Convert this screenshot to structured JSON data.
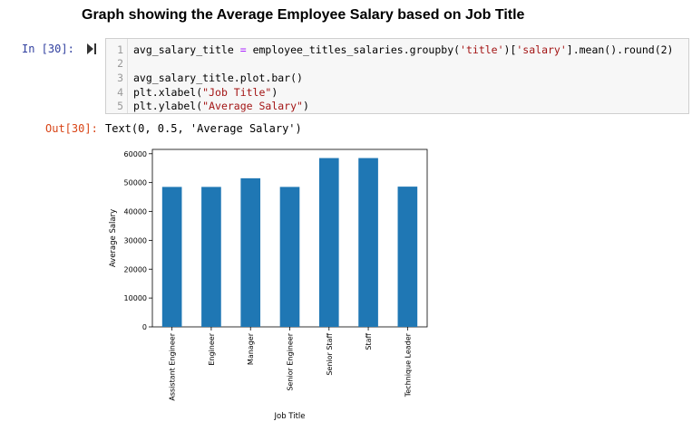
{
  "heading": "Graph showing the Average Employee Salary based on Job Title",
  "cell": {
    "in_prompt": "In [30]:",
    "run_icon": "run-cell-icon",
    "lines": [
      {
        "num": "1",
        "parts": [
          {
            "t": "avg_salary_title ",
            "c": ""
          },
          {
            "t": "=",
            "c": "op"
          },
          {
            "t": " employee_titles_salaries.groupby(",
            "c": ""
          },
          {
            "t": "'title'",
            "c": "str"
          },
          {
            "t": ")[",
            "c": ""
          },
          {
            "t": "'salary'",
            "c": "str"
          },
          {
            "t": "].mean().round(2)",
            "c": ""
          }
        ]
      },
      {
        "num": "2",
        "parts": []
      },
      {
        "num": "3",
        "parts": [
          {
            "t": "avg_salary_title.plot.bar()",
            "c": ""
          }
        ]
      },
      {
        "num": "4",
        "parts": [
          {
            "t": "plt.xlabel(",
            "c": ""
          },
          {
            "t": "\"Job Title\"",
            "c": "str"
          },
          {
            "t": ")",
            "c": ""
          }
        ]
      },
      {
        "num": "5",
        "parts": [
          {
            "t": "plt.ylabel(",
            "c": ""
          },
          {
            "t": "\"Average Salary\"",
            "c": "str"
          },
          {
            "t": ")",
            "c": ""
          }
        ]
      }
    ]
  },
  "output": {
    "out_prompt": "Out[30]:",
    "text": "Text(0, 0.5, 'Average Salary')"
  },
  "chart_data": {
    "type": "bar",
    "categories": [
      "Assistant Engineer",
      "Engineer",
      "Manager",
      "Senior Engineer",
      "Senior Staff",
      "Staff",
      "Technique Leader"
    ],
    "values": [
      48500,
      48500,
      51500,
      48500,
      58500,
      58500,
      48600
    ],
    "xlabel": "Job Title",
    "ylabel": "Average Salary",
    "yticks": [
      0,
      10000,
      20000,
      30000,
      40000,
      50000,
      60000
    ],
    "ylim": [
      0,
      61500
    ],
    "grid": false,
    "bar_color": "#1f77b4"
  }
}
